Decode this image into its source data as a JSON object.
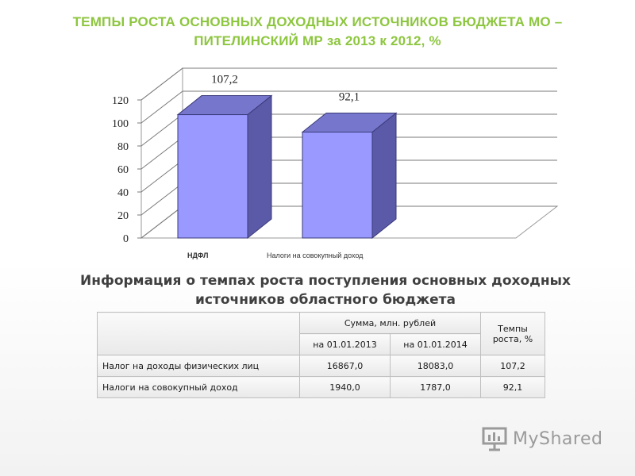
{
  "slide": {
    "title_line1": "ТЕМПЫ РОСТА ОСНОВНЫХ ДОХОДНЫХ ИСТОЧНИКОВ БЮДЖЕТА МО –",
    "title_line2": "ПИТЕЛИНСКИЙ МР за 2013 к 2012, %",
    "accent_color": "#8dc63f"
  },
  "chart_data": {
    "type": "bar",
    "style": "3d",
    "categories": [
      "НДФЛ",
      "Налоги на совокупный доход"
    ],
    "values": [
      107.2,
      92.1
    ],
    "data_labels": [
      "107,2",
      "92,1"
    ],
    "ylim": [
      0,
      120
    ],
    "yticks": [
      0,
      20,
      40,
      60,
      80,
      100,
      120
    ],
    "grid": true,
    "legend": "none",
    "bar_color": "#9999ff"
  },
  "table": {
    "title_line1": "Информация о темпах роста поступления основных доходных",
    "title_line2": "источников областного бюджета",
    "header_sum": "Сумма, млн. рублей",
    "header_rate_line1": "Темпы",
    "header_rate_line2": "роста, %",
    "header_date1": "на 01.01.2013",
    "header_date2": "на 01.01.2014",
    "rows": [
      {
        "label": "Налог на доходы физических лиц",
        "v2013": "16867,0",
        "v2014": "18083,0",
        "rate": "107,2"
      },
      {
        "label": "Налоги на совокупный доход",
        "v2013": "1940,0",
        "v2014": "1787,0",
        "rate": "92,1"
      }
    ]
  },
  "watermark": {
    "text": "MyShared",
    "icon": "presentation-board-icon"
  }
}
